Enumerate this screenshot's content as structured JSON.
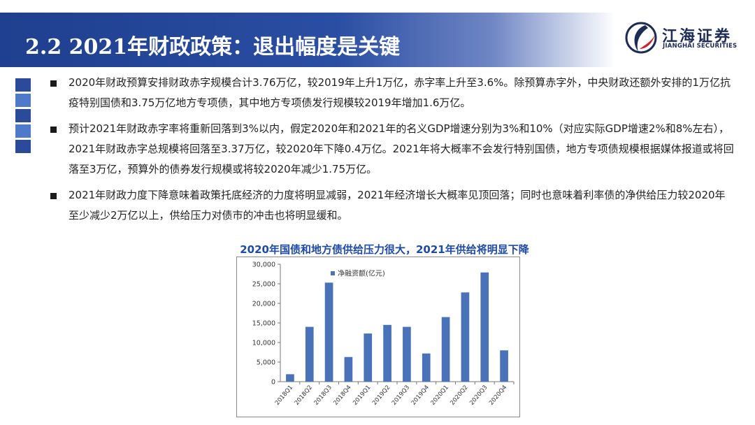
{
  "header": {
    "title": "2.2 2021年财政政策：退出幅度是关键"
  },
  "logo": {
    "name_cn": "江海证券",
    "name_en": "JIANGHAI SECURITIES"
  },
  "bullets": [
    "2020年财政预算安排财政赤字规模合计3.76万亿，较2019年上升1万亿，赤字率上升至3.6%。除预算赤字外，中央财政还额外安排的1万亿抗疫特别国债和3.75万亿地方专项债，其中地方专项债发行规模较2019年增加1.6万亿。",
    "预计2021年财政赤字率将重新回落到3%以内，假定2020年和2021年的名义GDP增速分别为3%和10%（对应实际GDP增速2%和8%左右），2021年财政赤字总规模将回落至3.37万亿，较2020年下降0.4万亿。2021年将大概率不会发行特别国债，地方专项债规模根据媒体报道或将回落至3万亿，预算外的债券发行规模或将较2020年减少1.75万亿。",
    "2021年财政力度下降意味着政策托底经济的力度将明显减弱，2021年经济增长大概率见顶回落；同时也意味着利率债的净供给压力较2020年至少减少2万亿以上，供给压力对债市的冲击也将明显缓和。"
  ],
  "chart_data": {
    "type": "bar",
    "title": "2020年国债和地方债供给压力很大，2021年供给将明显下降",
    "categories": [
      "2018Q1",
      "2018Q2",
      "2018Q3",
      "2018Q4",
      "2019Q1",
      "2019Q2",
      "2019Q3",
      "2019Q4",
      "2020Q1",
      "2020Q2",
      "2020Q3",
      "2020Q4"
    ],
    "series": [
      {
        "name": "净融资额(亿元)",
        "values": [
          1900,
          14000,
          25300,
          6300,
          12300,
          14500,
          14000,
          7200,
          16500,
          22800,
          27900,
          8000
        ]
      }
    ],
    "ylim": [
      0,
      30000
    ],
    "yticks": [
      "0",
      "5,000",
      "10,000",
      "15,000",
      "20,000",
      "25,000",
      "30,000"
    ],
    "ytick_values": [
      0,
      5000,
      10000,
      15000,
      20000,
      25000,
      30000
    ],
    "legend": "top-left",
    "grid": false,
    "bar_color": "#4a72b8"
  }
}
